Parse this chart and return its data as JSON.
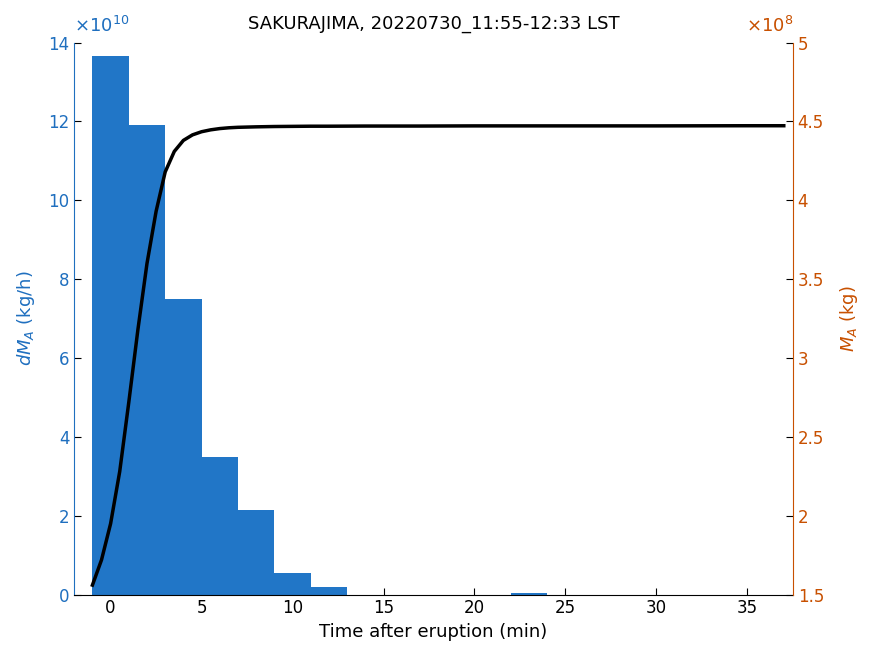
{
  "title": "SAKURAJIMA, 20220730_11:55-12:33 LST",
  "xlabel": "Time after eruption (min)",
  "ylabel_left": "dM_A (kg/h)",
  "ylabel_right": "M_A (kg)",
  "bar_lefts": [
    -1,
    1,
    3,
    5,
    7,
    9,
    11,
    22
  ],
  "bar_heights": [
    136500000000.0,
    119000000000.0,
    75000000000.0,
    35000000000.0,
    21500000000.0,
    5500000000.0,
    1800000000.0,
    450000000.0
  ],
  "bar_width": 2.0,
  "bar_color": "#2176c7",
  "line_x": [
    -1.0,
    -0.5,
    0.0,
    0.5,
    1.0,
    1.5,
    2.0,
    2.5,
    3.0,
    3.5,
    4.0,
    4.5,
    5.0,
    5.5,
    6.0,
    6.5,
    7.0,
    8.0,
    9.0,
    10.0,
    11.0,
    12.0,
    14.0,
    17.0,
    20.0,
    25.0,
    30.0,
    35.0,
    37.0
  ],
  "line_y_right": [
    156000000.0,
    172000000.0,
    195000000.0,
    228000000.0,
    272000000.0,
    318000000.0,
    360000000.0,
    393000000.0,
    418000000.0,
    431000000.0,
    438000000.0,
    441500000.0,
    443500000.0,
    444700000.0,
    445500000.0,
    446000000.0,
    446300000.0,
    446600000.0,
    446800000.0,
    446900000.0,
    447000000.0,
    447000000.0,
    447100000.0,
    447100000.0,
    447200000.0,
    447200000.0,
    447200000.0,
    447300000.0,
    447300000.0
  ],
  "xlim": [
    -2,
    37.5
  ],
  "ylim_left": [
    0,
    140000000000.0
  ],
  "ylim_right": [
    150000000.0,
    500000000.0
  ],
  "xticks": [
    0,
    5,
    10,
    15,
    20,
    25,
    30,
    35
  ],
  "yticks_left": [
    0,
    20000000000.0,
    40000000000.0,
    60000000000.0,
    80000000000.0,
    100000000000.0,
    120000000000.0,
    140000000000.0
  ],
  "yticks_right": [
    150000000.0,
    200000000.0,
    250000000.0,
    300000000.0,
    350000000.0,
    400000000.0,
    450000000.0,
    500000000.0
  ],
  "left_axis_color": "#1f6fbf",
  "right_axis_color": "#c85000",
  "line_color": "#000000",
  "title_fontsize": 13,
  "label_fontsize": 13,
  "tick_fontsize": 12
}
